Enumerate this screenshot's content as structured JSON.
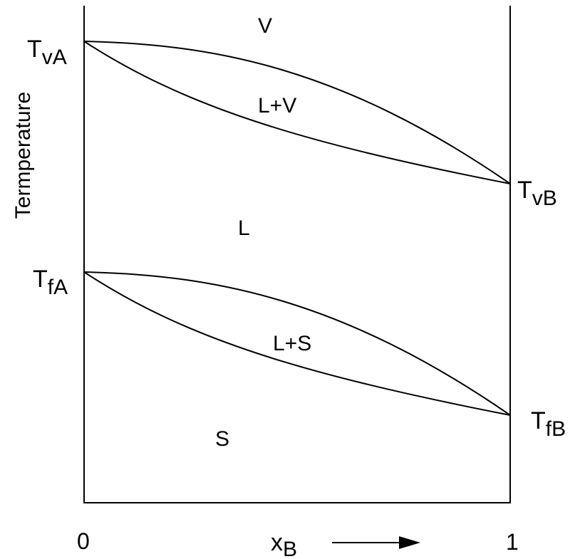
{
  "diagram": {
    "y_axis_label": "Termperature",
    "x_axis_label": {
      "base": "x",
      "subscript": "B"
    },
    "x_tick_start": "0",
    "x_tick_end": "1",
    "left_labels": {
      "vapor": {
        "base": "T",
        "subscript": "vA"
      },
      "fusion": {
        "base": "T",
        "subscript": "fA"
      }
    },
    "right_labels": {
      "vapor": {
        "base": "T",
        "subscript": "vB"
      },
      "fusion": {
        "base": "T",
        "subscript": "fB"
      }
    },
    "regions": {
      "vapor": "V",
      "liquid_vapor": "L+V",
      "liquid": "L",
      "liquid_solid": "L+S",
      "solid": "S"
    },
    "line_color": "#000000"
  }
}
